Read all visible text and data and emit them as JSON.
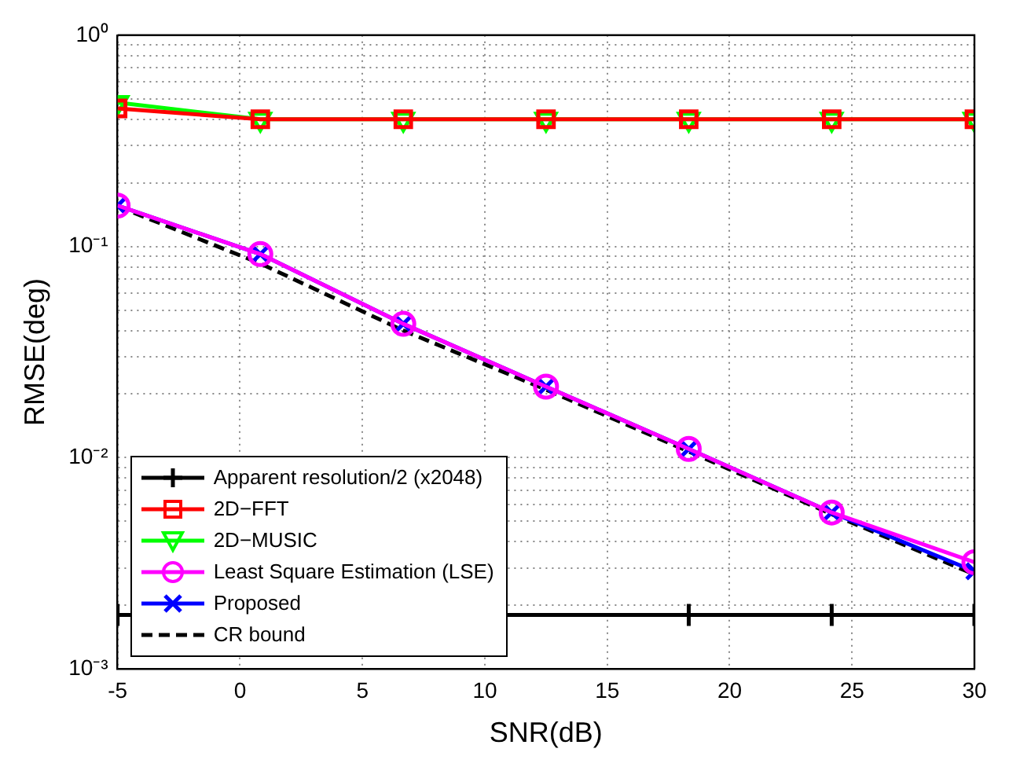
{
  "chart_data": {
    "type": "line",
    "xlabel": "SNR(dB)",
    "ylabel": "RMSE(deg)",
    "x": [
      -5,
      0.83,
      6.67,
      12.5,
      18.33,
      24.17,
      30
    ],
    "xlim": [
      -5,
      30
    ],
    "xticks": [
      -5,
      0,
      5,
      10,
      15,
      20,
      25,
      30
    ],
    "ylim": [
      0.001,
      1
    ],
    "log": true,
    "grid": true,
    "legend": "bottom left",
    "yticks": [
      {
        "value": 0.001,
        "label": "10⁻³"
      },
      {
        "value": 0.002,
        "label": null
      },
      {
        "value": 0.003,
        "label": null
      },
      {
        "value": 0.004,
        "label": null
      },
      {
        "value": 0.005,
        "label": null
      },
      {
        "value": 0.006,
        "label": null
      },
      {
        "value": 0.007,
        "label": null
      },
      {
        "value": 0.008,
        "label": null
      },
      {
        "value": 0.009,
        "label": null
      },
      {
        "value": 0.01,
        "label": "10⁻²"
      },
      {
        "value": 0.02,
        "label": null
      },
      {
        "value": 0.03,
        "label": null
      },
      {
        "value": 0.04,
        "label": null
      },
      {
        "value": 0.05,
        "label": null
      },
      {
        "value": 0.06,
        "label": null
      },
      {
        "value": 0.07,
        "label": null
      },
      {
        "value": 0.08,
        "label": null
      },
      {
        "value": 0.09,
        "label": null
      },
      {
        "value": 0.1,
        "label": "10⁻¹"
      },
      {
        "value": 0.2,
        "label": null
      },
      {
        "value": 0.3,
        "label": null
      },
      {
        "value": 0.4,
        "label": null
      },
      {
        "value": 0.5,
        "label": null
      },
      {
        "value": 0.6,
        "label": null
      },
      {
        "value": 0.7,
        "label": null
      },
      {
        "value": 0.8,
        "label": null
      },
      {
        "value": 0.9,
        "label": null
      },
      {
        "value": 1,
        "label": "10⁰"
      }
    ],
    "series": [
      {
        "name": "Apparent resolution/2 (x2048)",
        "color": "#000000",
        "marker": "cross",
        "line_style": "solid",
        "values": [
          0.0018,
          null,
          null,
          null,
          0.0018,
          0.0018,
          0.0018
        ]
      },
      {
        "name": "2D−FFT",
        "color": "#ff0000",
        "marker": "square",
        "line_style": "solid",
        "values": [
          0.45,
          0.4,
          0.4,
          0.4,
          0.4,
          0.4,
          0.4
        ]
      },
      {
        "name": "2D−MUSIC",
        "color": "#00ff00",
        "marker": "triangle",
        "line_style": "solid",
        "values": [
          0.48,
          0.4,
          0.4,
          0.4,
          0.4,
          0.4,
          0.4
        ]
      },
      {
        "name": "Least Square Estimation (LSE)",
        "color": "#ff00ff",
        "marker": "circle",
        "line_style": "solid",
        "values": [
          0.156,
          0.092,
          0.043,
          0.0217,
          0.011,
          0.0055,
          0.0032
        ]
      },
      {
        "name": "Proposed",
        "color": "#0000ff",
        "marker": "x",
        "line_style": "solid",
        "values": [
          0.156,
          0.092,
          0.043,
          0.0217,
          0.011,
          0.0055,
          0.0029
        ]
      },
      {
        "name": "CR bound",
        "color": "#000000",
        "marker": "none",
        "line_style": "dashed",
        "values": [
          0.155,
          0.083,
          0.04,
          0.021,
          0.0107,
          0.0054,
          0.0028
        ]
      }
    ]
  }
}
